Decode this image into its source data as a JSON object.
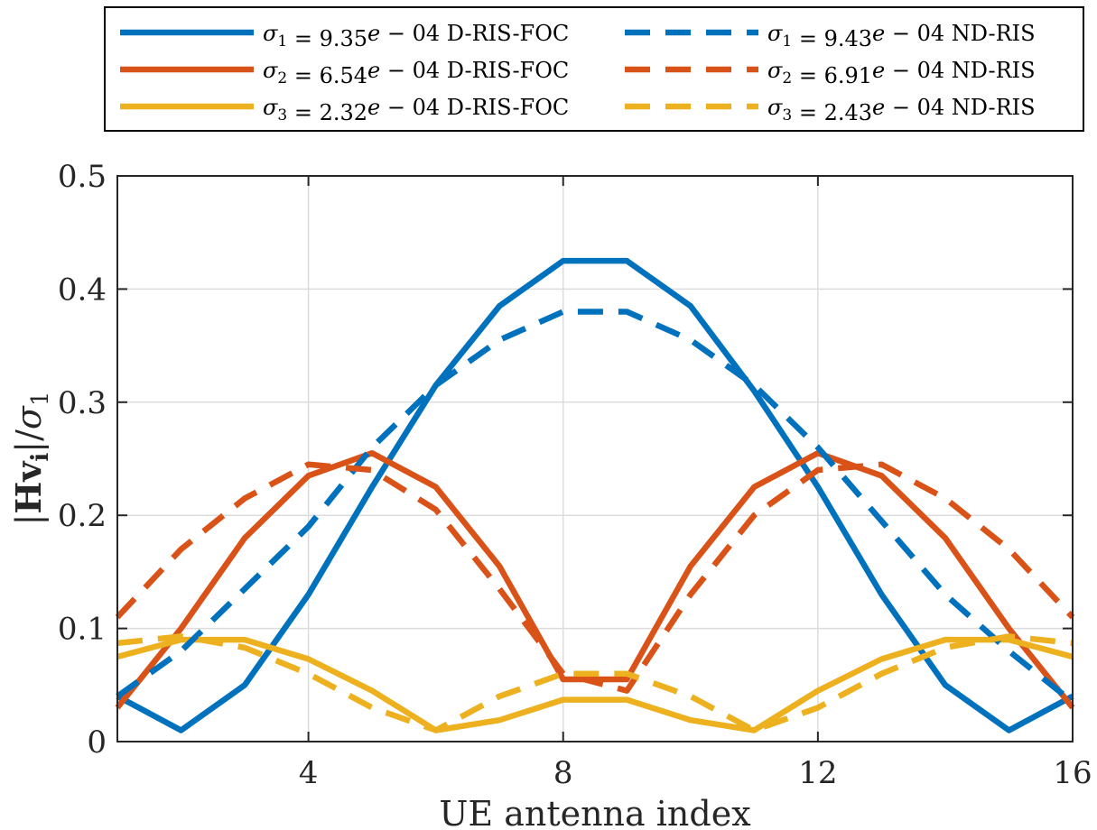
{
  "chart_data": {
    "type": "line",
    "xlabel": "UE antenna index",
    "ylabel": "|Hv_i|/σ_1",
    "xlim": [
      1,
      16
    ],
    "ylim": [
      0,
      0.5
    ],
    "x_ticks": [
      "4",
      "8",
      "12",
      "16"
    ],
    "y_ticks": [
      "0",
      "0.1",
      "0.2",
      "0.3",
      "0.4",
      "0.5"
    ],
    "grid": true,
    "legend_position": "top (above plot, two columns)",
    "x": [
      1,
      2,
      3,
      4,
      5,
      6,
      7,
      8,
      9,
      10,
      11,
      12,
      13,
      14,
      15,
      16
    ],
    "series": [
      {
        "name": "σ1 = 9.35e − 04 D-RIS-FOC",
        "sym": "σ",
        "sub": "1",
        "eq": " = 9.35",
        "e": "e",
        "rest": " − 04 D-RIS-FOC",
        "color": "#0072BD",
        "dashed": false,
        "values": [
          0.04,
          0.01,
          0.05,
          0.13,
          0.225,
          0.315,
          0.385,
          0.425,
          0.425,
          0.385,
          0.31,
          0.225,
          0.13,
          0.05,
          0.01,
          0.04
        ]
      },
      {
        "name": "σ2 = 6.54e − 04 D-RIS-FOC",
        "sym": "σ",
        "sub": "2",
        "eq": " = 6.54",
        "e": "e",
        "rest": " − 04 D-RIS-FOC",
        "color": "#D95319",
        "dashed": false,
        "values": [
          0.03,
          0.1,
          0.18,
          0.235,
          0.255,
          0.225,
          0.155,
          0.055,
          0.055,
          0.155,
          0.225,
          0.255,
          0.235,
          0.18,
          0.1,
          0.03
        ]
      },
      {
        "name": "σ3 = 2.32e − 04 D-RIS-FOC",
        "sym": "σ",
        "sub": "3",
        "eq": " = 2.32",
        "e": "e",
        "rest": " − 04 D-RIS-FOC",
        "color": "#EDB120",
        "dashed": false,
        "values": [
          0.075,
          0.09,
          0.09,
          0.073,
          0.045,
          0.01,
          0.019,
          0.037,
          0.037,
          0.019,
          0.01,
          0.045,
          0.073,
          0.09,
          0.09,
          0.075
        ]
      },
      {
        "name": "σ1 = 9.43e − 04 ND-RIS",
        "sym": "σ",
        "sub": "1",
        "eq": " = 9.43",
        "e": "e",
        "rest": " − 04 ND-RIS",
        "color": "#0072BD",
        "dashed": true,
        "values": [
          0.04,
          0.08,
          0.135,
          0.19,
          0.26,
          0.315,
          0.355,
          0.38,
          0.38,
          0.355,
          0.315,
          0.26,
          0.195,
          0.13,
          0.08,
          0.035
        ]
      },
      {
        "name": "σ2 = 6.91e − 04 ND-RIS",
        "sym": "σ",
        "sub": "2",
        "eq": " = 6.91",
        "e": "e",
        "rest": " − 04 ND-RIS",
        "color": "#D95319",
        "dashed": true,
        "values": [
          0.11,
          0.17,
          0.215,
          0.245,
          0.24,
          0.205,
          0.135,
          0.06,
          0.045,
          0.13,
          0.2,
          0.24,
          0.245,
          0.215,
          0.17,
          0.11
        ]
      },
      {
        "name": "σ3 = 2.43e − 04 ND-RIS",
        "sym": "σ",
        "sub": "3",
        "eq": " = 2.43",
        "e": "e",
        "rest": " − 04 ND-RIS",
        "color": "#EDB120",
        "dashed": true,
        "values": [
          0.087,
          0.093,
          0.083,
          0.06,
          0.03,
          0.01,
          0.04,
          0.06,
          0.06,
          0.04,
          0.01,
          0.03,
          0.06,
          0.083,
          0.093,
          0.087
        ]
      }
    ]
  }
}
